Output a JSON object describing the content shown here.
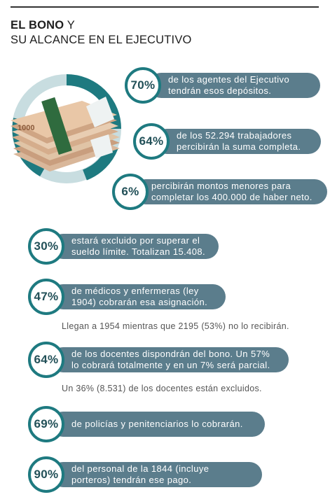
{
  "header": {
    "title_bold": "EL BONO",
    "title_rest": " Y",
    "title_line2": "SU ALCANCE EN EL EJECUTIVO"
  },
  "illustration": {
    "banknote_value": "1000",
    "icon": "money-stack-icon",
    "colors": {
      "ring": "#1e7a80",
      "ring_light": "#c8dde0"
    }
  },
  "colors": {
    "pill": "#5b7d8c",
    "circle_border": "#1e7a80",
    "percent_text": "#225058"
  },
  "stats": [
    {
      "percent": "70%",
      "line1": "de los agentes del Ejecutivo",
      "line2": "tendrán esos depósitos."
    },
    {
      "percent": "64%",
      "line1": "de los 52.294 trabajadores",
      "line2": "percibirán la suma completa."
    },
    {
      "percent": "6%",
      "line1": "percibirán montos menores para",
      "line2": "completar los 400.000 de haber neto."
    },
    {
      "percent": "30%",
      "line1": "estará excluido por superar el",
      "line2": "sueldo límite. Totalizan 15.408."
    },
    {
      "percent": "47%",
      "line1": "de médicos y enfermeras (ley",
      "line2": "1904) cobrarán esa asignación.",
      "note": "Llegan a 1954 mientras que 2195 (53%) no lo recibirán."
    },
    {
      "percent": "64%",
      "line1": "de los docentes dispondrán del bono.  Un 57%",
      "line2": "lo cobrará totalmente y en un 7% será parcial.",
      "note": "Un 36% (8.531) de los docentes están excluidos."
    },
    {
      "percent": "69%",
      "line1": "de policías y penitenciarios lo cobrarán."
    },
    {
      "percent": "90%",
      "line1": "del personal de la 1844 (incluye",
      "line2": "porteros) tendrán ese pago."
    }
  ]
}
